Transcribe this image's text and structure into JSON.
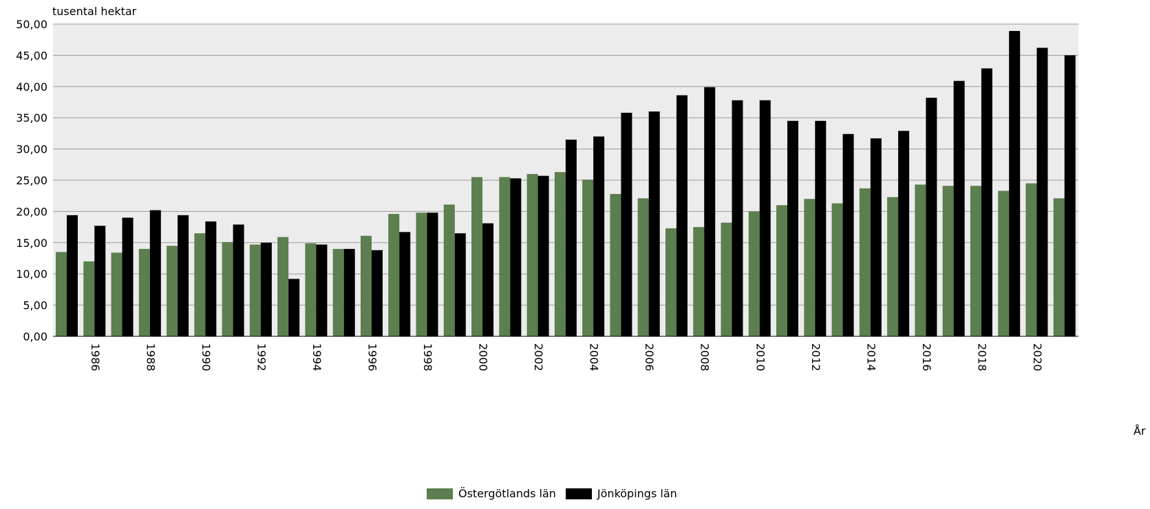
{
  "chart_data": {
    "type": "bar",
    "ylabel": "tusental hektar",
    "xlabel": "År",
    "ylim": [
      0,
      50
    ],
    "yticks": [
      "0,00",
      "5,00",
      "10,00",
      "15,00",
      "20,00",
      "25,00",
      "30,00",
      "35,00",
      "40,00",
      "45,00",
      "50,00"
    ],
    "grid": true,
    "legend_position": "bottom-center",
    "categories": [
      "1985",
      "1986",
      "1987",
      "1988",
      "1989",
      "1990",
      "1991",
      "1992",
      "1993",
      "1994",
      "1995",
      "1996",
      "1997",
      "1998",
      "1999",
      "2000",
      "2001",
      "2002",
      "2003",
      "2004",
      "2005",
      "2006",
      "2007",
      "2008",
      "2009",
      "2010",
      "2011",
      "2012",
      "2013",
      "2014",
      "2015",
      "2016",
      "2017",
      "2018",
      "2019",
      "2020",
      "2021"
    ],
    "tick_labels": [
      "1986",
      "1988",
      "1990",
      "1992",
      "1994",
      "1996",
      "1998",
      "2000",
      "2002",
      "2004",
      "2006",
      "2008",
      "2010",
      "2012",
      "2014",
      "2016",
      "2018",
      "2020"
    ],
    "series": [
      {
        "name": "Östergötlands län",
        "color": "#5b7f4e",
        "values": [
          13.5,
          12.0,
          13.4,
          14.0,
          14.5,
          16.5,
          15.1,
          14.7,
          15.9,
          14.9,
          14.0,
          16.1,
          19.6,
          19.8,
          21.1,
          25.5,
          25.5,
          26.0,
          26.3,
          25.1,
          22.8,
          22.1,
          17.3,
          17.5,
          18.2,
          20.0,
          21.0,
          22.0,
          21.3,
          23.7,
          22.3,
          24.3,
          24.1,
          24.1,
          23.3,
          24.5,
          22.1
        ]
      },
      {
        "name": "Jönköpings län",
        "color": "#000000",
        "values": [
          19.4,
          17.7,
          19.0,
          20.2,
          19.4,
          18.4,
          17.9,
          15.0,
          9.2,
          14.7,
          14.0,
          13.8,
          16.7,
          19.8,
          16.5,
          18.1,
          25.3,
          25.7,
          31.5,
          32.0,
          35.8,
          36.0,
          38.6,
          39.9,
          37.8,
          37.8,
          34.5,
          34.5,
          32.4,
          31.7,
          32.9,
          38.2,
          40.9,
          42.9,
          48.9,
          46.2,
          45.0
        ]
      }
    ]
  },
  "plot_background": "#ececec"
}
